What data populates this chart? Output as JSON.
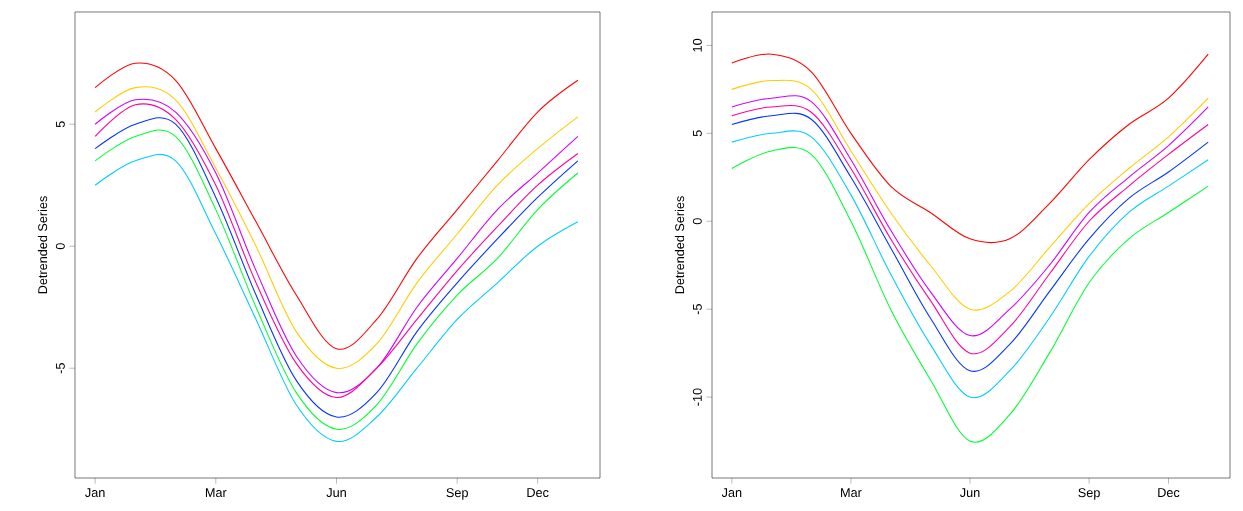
{
  "chart_data": [
    {
      "type": "line",
      "ylabel": "Detrended Series",
      "categories": [
        "Jan",
        null,
        null,
        "Mar",
        null,
        null,
        "Jun",
        null,
        null,
        "Sep",
        null,
        "Dec",
        null
      ],
      "ylim": [
        -9.5,
        9.6
      ],
      "yticks": [
        -5,
        0,
        5
      ],
      "marker": "none",
      "line_style": "solid",
      "series": [
        {
          "color": "#ff0000",
          "values": [
            6.5,
            7.5,
            6.8,
            4,
            1,
            -2,
            -4.2,
            -3,
            -0.5,
            1.5,
            3.5,
            5.5,
            6.8
          ]
        },
        {
          "color": "#ffcc00",
          "values": [
            5.5,
            6.5,
            6,
            3.2,
            0,
            -3.5,
            -5,
            -4,
            -1.5,
            0.5,
            2.5,
            4,
            5.3
          ]
        },
        {
          "color": "#00ff33",
          "values": [
            3.5,
            4.5,
            4.5,
            1.5,
            -2.5,
            -6,
            -7.5,
            -6.5,
            -4,
            -2,
            -0.5,
            1.5,
            3
          ]
        },
        {
          "color": "#00ccff",
          "values": [
            2.5,
            3.5,
            3.5,
            0.5,
            -3,
            -6.5,
            -8,
            -7,
            -5,
            -3,
            -1.5,
            0,
            1
          ]
        },
        {
          "color": "#0033ff",
          "values": [
            4,
            5,
            5,
            2,
            -2,
            -5.5,
            -7,
            -6,
            -3.5,
            -1.5,
            0.3,
            2,
            3.5
          ]
        },
        {
          "color": "#cc00ff",
          "values": [
            5,
            6,
            5.5,
            3,
            -1,
            -4.5,
            -6,
            -5,
            -2.5,
            -0.5,
            1.5,
            3,
            4.5
          ]
        },
        {
          "color": "#ff0099",
          "values": [
            4.5,
            5.8,
            5.2,
            2.5,
            -1.5,
            -4.8,
            -6.2,
            -5,
            -3,
            -1,
            0.8,
            2.5,
            3.8
          ]
        }
      ]
    },
    {
      "type": "line",
      "ylabel": "Detrended Series",
      "categories": [
        "Jan",
        null,
        null,
        "Mar",
        null,
        null,
        "Jun",
        null,
        null,
        "Sep",
        null,
        "Dec",
        null
      ],
      "ylim": [
        -14.6,
        11.9
      ],
      "yticks": [
        -10,
        -5,
        0,
        5,
        10
      ],
      "marker": "none",
      "line_style": "solid",
      "series": [
        {
          "color": "#ff0000",
          "values": [
            9,
            9.5,
            8.5,
            5,
            2,
            0.5,
            -1,
            -1,
            1,
            3.5,
            5.5,
            7,
            9.5
          ]
        },
        {
          "color": "#ffcc00",
          "values": [
            7.5,
            8,
            7.5,
            4,
            0.5,
            -2.5,
            -5,
            -4,
            -1.5,
            1,
            3,
            4.8,
            7
          ]
        },
        {
          "color": "#00ff33",
          "values": [
            3,
            4,
            3.8,
            0,
            -5,
            -9,
            -12.5,
            -11,
            -7.5,
            -3.5,
            -1,
            0.5,
            2
          ]
        },
        {
          "color": "#00ccff",
          "values": [
            4.5,
            5,
            4.8,
            1.5,
            -3,
            -7,
            -10,
            -8.5,
            -5.5,
            -2,
            0.5,
            2,
            3.5
          ]
        },
        {
          "color": "#0033ff",
          "values": [
            5.5,
            6,
            5.8,
            2.5,
            -1.5,
            -5.5,
            -8.5,
            -7,
            -4,
            -1,
            1.3,
            2.8,
            4.5
          ]
        },
        {
          "color": "#cc00ff",
          "values": [
            6.5,
            7,
            6.8,
            3.5,
            -0.5,
            -4,
            -6.5,
            -5,
            -2.5,
            0.5,
            2.5,
            4.3,
            6.5
          ]
        },
        {
          "color": "#ff0099",
          "values": [
            6,
            6.5,
            6.2,
            3,
            -1,
            -4.5,
            -7.5,
            -6,
            -3,
            0,
            2,
            3.8,
            5.5
          ]
        }
      ]
    }
  ]
}
